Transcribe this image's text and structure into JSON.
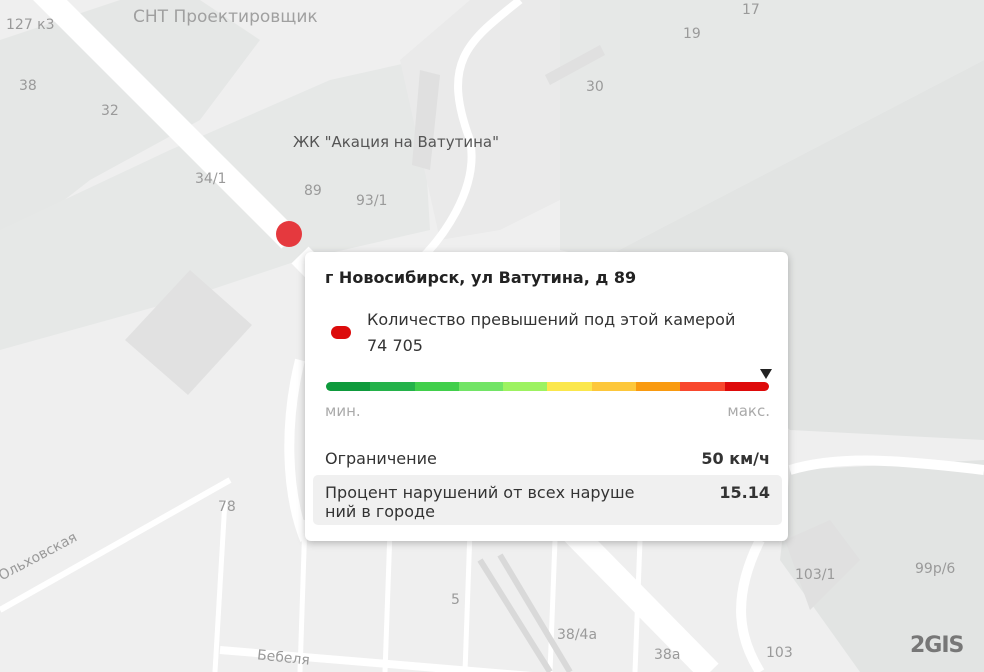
{
  "map": {
    "labels": {
      "snt": "СНТ Проектировщик",
      "b127": "127 к3",
      "b38": "38",
      "b32": "32",
      "b34_1": "34/1",
      "b89": "89",
      "b93_1": "93/1",
      "zhk": "ЖК \"Акация на Ватутина\"",
      "b30": "30",
      "b19": "19",
      "b17": "17",
      "b78": "78",
      "olkh": "Ольховская",
      "bebel": "Бебеля",
      "b38_4a": "38/4а",
      "b38a": "38а",
      "b103": "103",
      "b103_1": "103/1",
      "b99": "99р/6",
      "b5": "5"
    },
    "logo": "2GIS",
    "marker_color": "#e5393e"
  },
  "popup": {
    "title": "г Новосибирск, ул Ватутина, д 89",
    "indicator_color": "#dc0b0b",
    "count_label": "Количество превышений под этой камерой",
    "count_value": "74 705",
    "scale_colors": [
      "#0e9a3c",
      "#24b24a",
      "#41cf4b",
      "#72e466",
      "#9df261",
      "#fbe74c",
      "#fdc73b",
      "#f99a10",
      "#f8472d",
      "#de0a0a"
    ],
    "scale_level_percent": 100,
    "min_label": "мин.",
    "max_label": "макс.",
    "limit_label": "Ограничение",
    "limit_value": "50 км/ч",
    "percent_label": "Процент нарушений от всех наруше ний в городе",
    "percent_value": "15.14"
  }
}
